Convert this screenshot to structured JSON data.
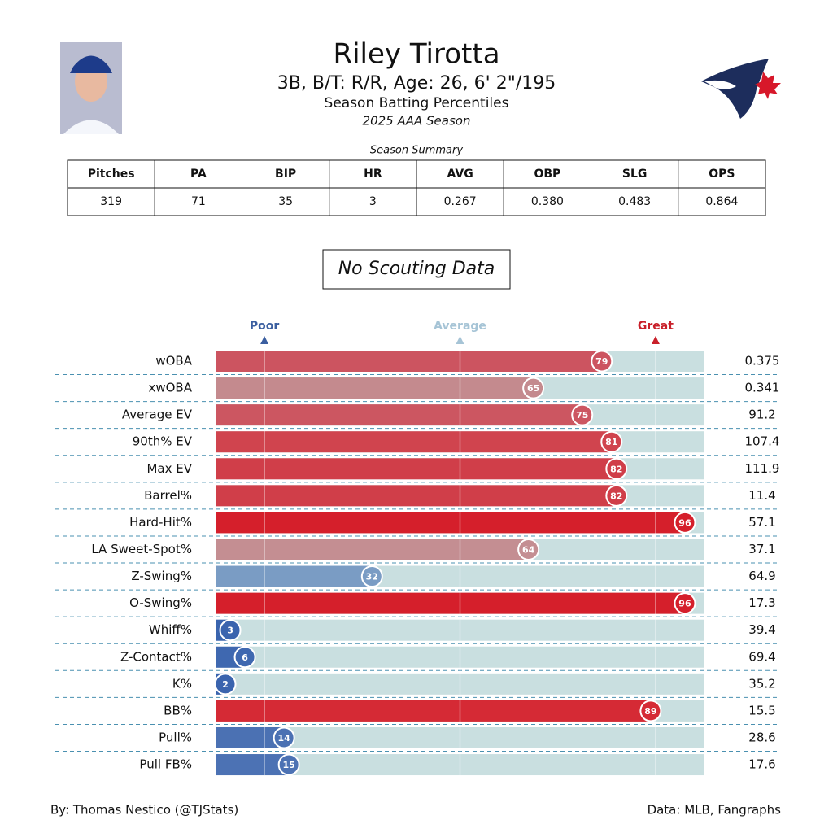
{
  "header": {
    "name": "Riley Tirotta",
    "info": "3B, B/T: R/R, Age: 26, 6' 2\"/195",
    "subtitle": "Season Batting Percentiles",
    "season": "2025 AAA Season"
  },
  "summary": {
    "title": "Season Summary",
    "columns": [
      "Pitches",
      "PA",
      "BIP",
      "HR",
      "AVG",
      "OBP",
      "SLG",
      "OPS"
    ],
    "rows": [
      [
        "319",
        "71",
        "35",
        "3",
        "0.267",
        "0.380",
        "0.483",
        "0.864"
      ]
    ]
  },
  "note": "No Scouting Data",
  "chart_data": {
    "type": "percentile",
    "categories": [
      "wOBA",
      "xwOBA",
      "Average EV",
      "90th% EV",
      "Max EV",
      "Barrel%",
      "Hard-Hit%",
      "LA Sweet-Spot%",
      "Z-Swing%",
      "O-Swing%",
      "Whiff%",
      "Z-Contact%",
      "K%",
      "BB%",
      "Pull%",
      "Pull FB%"
    ],
    "values": [
      79,
      65,
      75,
      81,
      82,
      82,
      96,
      64,
      32,
      96,
      3,
      6,
      2,
      89,
      14,
      15
    ],
    "colors": [
      "#cc5460",
      "#c48a8e",
      "#cc5661",
      "#d0444e",
      "#d03e49",
      "#d03e49",
      "#d51f2b",
      "#c48e92",
      "#7a9cc4",
      "#d51f2b",
      "#3a64ae",
      "#3f68b0",
      "#3a64ae",
      "#d52a35",
      "#4b71b3",
      "#4c72b4"
    ],
    "stats": [
      0.375,
      0.341,
      91.2,
      107.4,
      111.9,
      11.4,
      57.1,
      37.1,
      64.9,
      17.3,
      39.4,
      69.4,
      35.2,
      15.5,
      28.6,
      17.6
    ],
    "xlim": [
      0,
      100
    ],
    "xticks": [
      {
        "value": 10,
        "label": "Poor"
      },
      {
        "value": 50,
        "label": "Average"
      },
      {
        "value": 90,
        "label": "Great"
      }
    ],
    "tick_colors": [
      "#3b5fa0",
      "#a6c4d6",
      "#c9202a"
    ],
    "track_color": "#c9dfe0"
  },
  "footer": {
    "left": "By: Thomas Nestico (@TJStats)",
    "right": "Data: MLB, Fangraphs"
  }
}
